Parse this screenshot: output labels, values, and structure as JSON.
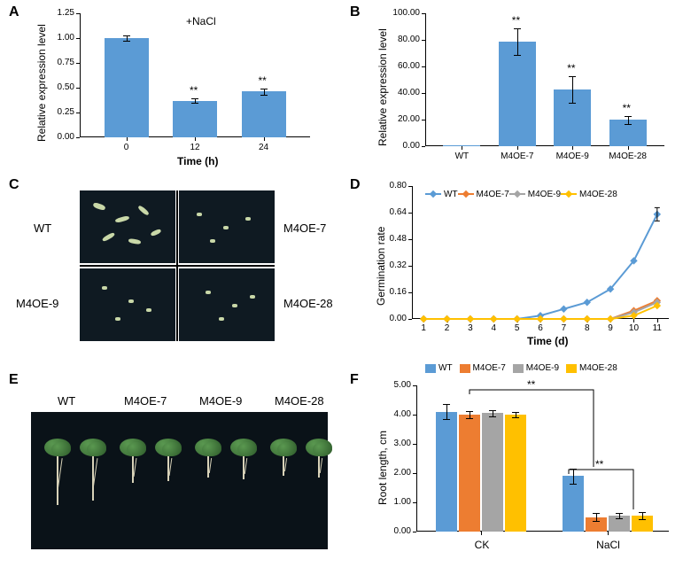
{
  "panelA": {
    "label": "A",
    "title": "+NaCl",
    "ylabel": "Relative expression level",
    "xlabel": "Time (h)",
    "categories": [
      "0",
      "12",
      "24"
    ],
    "values": [
      1.0,
      0.37,
      0.46
    ],
    "errors": [
      0.03,
      0.02,
      0.03
    ],
    "sig": [
      "",
      "**",
      "**"
    ],
    "bar_color": "#5b9bd5",
    "ylim": [
      0,
      1.25
    ],
    "yticks": [
      "0.00",
      "0.25",
      "0.50",
      "0.75",
      "1.00",
      "1.25"
    ]
  },
  "panelB": {
    "label": "B",
    "ylabel": "Relative expression level",
    "categories": [
      "WT",
      "M4OE-7",
      "M4OE-9",
      "M4OE-28"
    ],
    "values": [
      1.0,
      79,
      43,
      20
    ],
    "errors": [
      0.3,
      10,
      10,
      3
    ],
    "sig": [
      "",
      "**",
      "**",
      "**"
    ],
    "bar_color": "#5b9bd5",
    "ylim": [
      0,
      100
    ],
    "yticks": [
      "0.00",
      "20.00",
      "40.00",
      "60.00",
      "80.00",
      "100.00"
    ]
  },
  "panelC": {
    "label": "C",
    "cells": [
      "WT",
      "M4OE-7",
      "M4OE-9",
      "M4OE-28"
    ]
  },
  "panelD": {
    "label": "D",
    "ylabel": "Germination rate",
    "xlabel": "Time (d)",
    "xticks": [
      "1",
      "2",
      "3",
      "4",
      "5",
      "6",
      "7",
      "8",
      "9",
      "10",
      "11"
    ],
    "yticks": [
      "0.00",
      "0.16",
      "0.32",
      "0.48",
      "0.64",
      "0.80"
    ],
    "ylim": [
      0,
      0.8
    ],
    "series": [
      {
        "name": "WT",
        "color": "#5b9bd5",
        "points": [
          0,
          0,
          0,
          0,
          0,
          0.02,
          0.06,
          0.1,
          0.18,
          0.35,
          0.63
        ]
      },
      {
        "name": "M4OE-7",
        "color": "#ed7d31",
        "points": [
          0,
          0,
          0,
          0,
          0,
          0,
          0,
          0,
          0,
          0.05,
          0.11
        ]
      },
      {
        "name": "M4OE-9",
        "color": "#a5a5a5",
        "points": [
          0,
          0,
          0,
          0,
          0,
          0,
          0,
          0,
          0,
          0.04,
          0.1
        ]
      },
      {
        "name": "M4OE-28",
        "color": "#ffc000",
        "points": [
          0,
          0,
          0,
          0,
          0,
          0,
          0,
          0,
          0,
          0.02,
          0.08
        ]
      }
    ],
    "err_wt_last": 0.04
  },
  "panelE": {
    "label": "E",
    "labels": [
      "WT",
      "M4OE-7",
      "M4OE-9",
      "M4OE-28"
    ]
  },
  "panelF": {
    "label": "F",
    "ylabel": "Root length, cm",
    "groups": [
      "CK",
      "NaCl"
    ],
    "series": [
      {
        "name": "WT",
        "color": "#5b9bd5",
        "values": [
          4.1,
          1.9
        ],
        "errors": [
          0.25,
          0.25
        ]
      },
      {
        "name": "M4OE-7",
        "color": "#ed7d31",
        "values": [
          4.0,
          0.5
        ],
        "errors": [
          0.12,
          0.15
        ]
      },
      {
        "name": "M4OE-9",
        "color": "#a5a5a5",
        "values": [
          4.05,
          0.55
        ],
        "errors": [
          0.1,
          0.1
        ]
      },
      {
        "name": "M4OE-28",
        "color": "#ffc000",
        "values": [
          4.0,
          0.55
        ],
        "errors": [
          0.1,
          0.12
        ]
      }
    ],
    "ylim": [
      0,
      5
    ],
    "yticks": [
      "0.00",
      "1.00",
      "2.00",
      "3.00",
      "4.00",
      "5.00"
    ],
    "sig": "**"
  }
}
